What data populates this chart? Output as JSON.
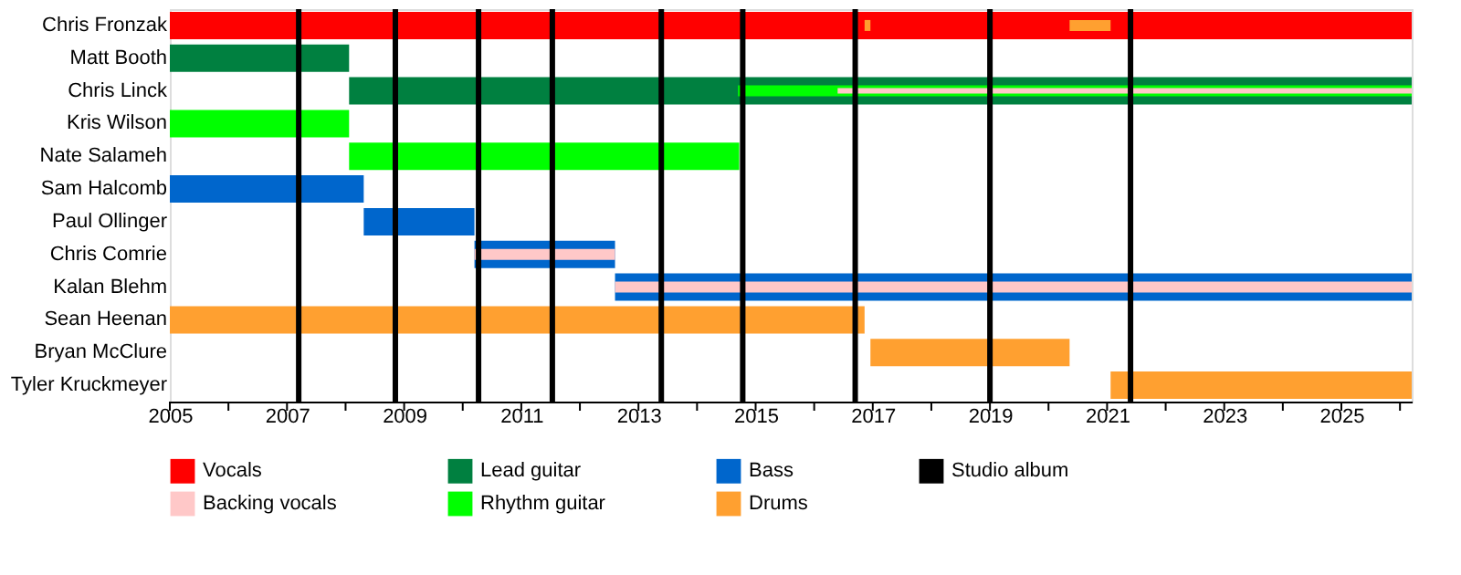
{
  "chart_data": {
    "type": "bar",
    "orientation": "horizontal",
    "categories": [
      "Chris Fronzak",
      "Matt Booth",
      "Chris Linck",
      "Kris Wilson",
      "Nate Salameh",
      "Sam Halcomb",
      "Paul Ollinger",
      "Chris Comrie",
      "Kalan Blehm",
      "Sean Heenan",
      "Bryan McClure",
      "Tyler Kruckmeyer"
    ],
    "series": [
      {
        "name": "Vocals",
        "color": "#ff0000",
        "base": [
          2005,
          null,
          null,
          null,
          null,
          null,
          null,
          null,
          null,
          null,
          null,
          null
        ],
        "values": [
          21.2,
          null,
          null,
          null,
          null,
          null,
          null,
          null,
          null,
          null,
          null,
          null
        ]
      },
      {
        "name": "Backing vocals",
        "color": "#ffc8c8",
        "base": [
          null,
          null,
          2016.4,
          null,
          null,
          null,
          null,
          2010.2,
          2012.6,
          null,
          null,
          null
        ],
        "values": [
          null,
          null,
          9.8,
          null,
          null,
          null,
          null,
          2.4,
          13.6,
          null,
          null,
          null
        ]
      },
      {
        "name": "Lead guitar",
        "color": "#008040",
        "base": [
          null,
          2005,
          2008.06,
          null,
          null,
          null,
          null,
          null,
          null,
          null,
          null,
          null
        ],
        "values": [
          null,
          3.06,
          18.14,
          null,
          null,
          null,
          null,
          null,
          null,
          null,
          null,
          null
        ]
      },
      {
        "name": "Rhythm guitar",
        "color": "#00ff00",
        "base": [
          null,
          null,
          2014.7,
          2005,
          2008.06,
          null,
          null,
          null,
          null,
          null,
          null,
          null
        ],
        "values": [
          null,
          null,
          11.5,
          3.06,
          6.66,
          null,
          null,
          null,
          null,
          null,
          null,
          null
        ]
      },
      {
        "name": "Bass",
        "color": "#0066cc",
        "base": [
          null,
          null,
          null,
          null,
          null,
          2005,
          2008.31,
          2010.2,
          2012.6,
          null,
          null,
          null
        ],
        "values": [
          null,
          null,
          null,
          null,
          null,
          3.31,
          1.89,
          2.4,
          13.6,
          null,
          null,
          null
        ]
      },
      {
        "name": "Drums",
        "color": "#ffa030",
        "base": [
          2020.36,
          null,
          null,
          null,
          null,
          null,
          null,
          null,
          null,
          2005,
          2016.96,
          2021.06
        ],
        "values": [
          0.7,
          null,
          null,
          null,
          null,
          null,
          null,
          null,
          null,
          11.86,
          3.4,
          5.14
        ]
      },
      {
        "color": "#ffa030",
        "base": [
          2016.86,
          null,
          null,
          null,
          null,
          null,
          null,
          null,
          null,
          null,
          null,
          null
        ],
        "values": [
          0.1,
          null,
          null,
          null,
          null,
          null,
          null,
          null,
          null,
          null,
          null,
          null
        ]
      }
    ],
    "ref_lines": [
      {
        "axis": "x",
        "value": 2007.2,
        "label": "Studio album",
        "color": "#000000"
      },
      {
        "axis": "x",
        "value": 2008.85,
        "color": "#000000"
      },
      {
        "axis": "x",
        "value": 2010.27,
        "color": "#000000"
      },
      {
        "axis": "x",
        "value": 2011.53,
        "color": "#000000"
      },
      {
        "axis": "x",
        "value": 2013.39,
        "color": "#000000"
      },
      {
        "axis": "x",
        "value": 2014.78,
        "color": "#000000"
      },
      {
        "axis": "x",
        "value": 2016.7,
        "color": "#000000"
      },
      {
        "axis": "x",
        "value": 2019.0,
        "color": "#000000"
      },
      {
        "axis": "x",
        "value": 2021.4,
        "color": "#000000"
      }
    ],
    "xlim": [
      2005,
      2026.2
    ],
    "xticks": [
      2005,
      {
        "value": 2006,
        "label": null
      },
      2007,
      {
        "value": 2008,
        "label": null
      },
      2009,
      {
        "value": 2010,
        "label": null
      },
      2011,
      {
        "value": 2012,
        "label": null
      },
      2013,
      {
        "value": 2014,
        "label": null
      },
      2015,
      {
        "value": 2016,
        "label": null
      },
      2017,
      {
        "value": 2018,
        "label": null
      },
      2019,
      {
        "value": 2020,
        "label": null
      },
      2021,
      {
        "value": 2022,
        "label": null
      },
      2023,
      {
        "value": 2024,
        "label": null
      },
      2025,
      {
        "value": 2026,
        "label": null
      }
    ],
    "legend": "bottom",
    "grid": false
  }
}
